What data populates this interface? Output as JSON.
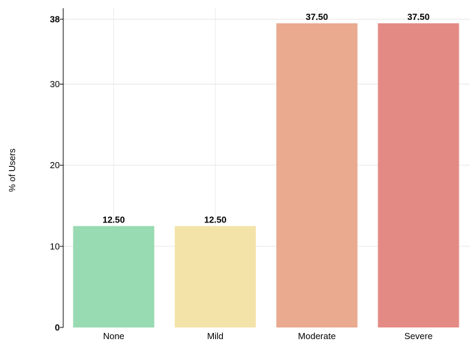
{
  "chart_data": {
    "type": "bar",
    "categories": [
      "None",
      "Mild",
      "Moderate",
      "Severe"
    ],
    "values": [
      12.5,
      12.5,
      37.5,
      37.5
    ],
    "value_labels": [
      "12.50",
      "12.50",
      "37.50",
      "37.50"
    ],
    "colors": [
      "#98dab2",
      "#f4e3a8",
      "#e9aa8f",
      "#e48a85"
    ],
    "ylabel": "% of Users",
    "xlabel": "",
    "title": "",
    "ylim": [
      0,
      38
    ],
    "yticks": [
      0,
      10,
      20,
      30,
      38
    ],
    "ytick_labels": [
      "0",
      "10",
      "20",
      "30",
      "38"
    ],
    "bold_yticks": [
      "0",
      "38"
    ],
    "grid": true,
    "legend": "none"
  }
}
